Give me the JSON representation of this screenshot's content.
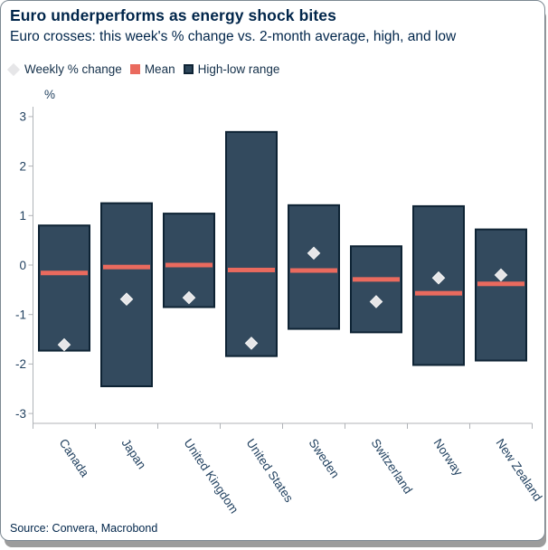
{
  "header": {
    "title": "Euro underperforms as energy shock bites",
    "subtitle": "Euro crosses: this week's % change vs. 2-month average, high, and low"
  },
  "chart_data": {
    "type": "range-bar",
    "title": "Euro underperforms as energy shock bites",
    "subtitle": "Euro crosses: this week's % change vs. 2-month average, high, and low",
    "unit_label": "%",
    "categories": [
      "Canada",
      "Japan",
      "United Kingdom",
      "United States",
      "Sweden",
      "Switzerland",
      "Norway",
      "New Zealand"
    ],
    "series": [
      {
        "name": "Weekly % change",
        "type": "point",
        "values": [
          -1.61,
          -0.69,
          -0.66,
          -1.58,
          0.24,
          -0.74,
          -0.26,
          -0.2
        ]
      },
      {
        "name": "Mean",
        "type": "line",
        "values": [
          -0.16,
          -0.04,
          0.0,
          -0.1,
          -0.11,
          -0.29,
          -0.57,
          -0.38
        ]
      },
      {
        "name": "High-low range",
        "type": "range",
        "high": [
          0.8,
          1.25,
          1.04,
          2.69,
          1.21,
          0.38,
          1.19,
          0.72
        ],
        "low": [
          -1.73,
          -2.45,
          -0.85,
          -1.84,
          -1.29,
          -1.36,
          -2.02,
          -1.93
        ]
      }
    ],
    "ylim": [
      -3,
      3
    ],
    "yticks": [
      3,
      2,
      1,
      0,
      -1,
      -2,
      -3
    ],
    "grid": false,
    "legend_position": "top-left",
    "colors": {
      "range_fill": "#334a5e",
      "range_border": "#0e2334",
      "mean": "#ea6a5e",
      "point": "#e6e6e8",
      "point_edge": "#f5f5f5",
      "axis": "#b0b3b7",
      "tick_text": "#1f3f5e",
      "title_text": "#00254a"
    }
  },
  "footer": {
    "source": "Source: Convera, Macrobond"
  }
}
